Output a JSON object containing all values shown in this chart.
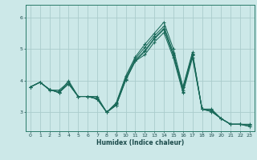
{
  "title": "",
  "xlabel": "Humidex (Indice chaleur)",
  "ylabel": "",
  "background_color": "#cce8e8",
  "grid_color": "#aacccc",
  "line_color": "#1a6a5a",
  "xlim": [
    -0.5,
    23.5
  ],
  "ylim": [
    2.4,
    6.4
  ],
  "yticks": [
    3,
    4,
    5,
    6
  ],
  "xticks": [
    0,
    1,
    2,
    3,
    4,
    5,
    6,
    7,
    8,
    9,
    10,
    11,
    12,
    13,
    14,
    15,
    16,
    17,
    18,
    19,
    20,
    21,
    22,
    23
  ],
  "series": [
    [
      3.8,
      3.95,
      3.7,
      3.7,
      3.95,
      3.5,
      3.5,
      3.5,
      3.0,
      3.3,
      4.15,
      4.75,
      5.15,
      5.5,
      5.85,
      5.0,
      3.8,
      4.9,
      3.1,
      3.1,
      2.8,
      2.62,
      2.62,
      2.62
    ],
    [
      3.8,
      3.95,
      3.72,
      3.65,
      3.9,
      3.5,
      3.5,
      3.45,
      3.0,
      3.25,
      4.05,
      4.65,
      4.95,
      5.35,
      5.65,
      4.82,
      3.7,
      4.82,
      3.1,
      3.05,
      2.8,
      2.62,
      2.62,
      2.55
    ],
    [
      3.8,
      3.95,
      3.72,
      3.62,
      4.0,
      3.5,
      3.5,
      3.42,
      3.0,
      3.28,
      4.1,
      4.7,
      5.05,
      5.42,
      5.72,
      4.88,
      3.78,
      4.85,
      3.1,
      3.08,
      2.8,
      2.62,
      2.62,
      2.55
    ],
    [
      3.8,
      3.95,
      3.72,
      3.62,
      3.9,
      3.5,
      3.5,
      3.42,
      3.0,
      3.22,
      4.02,
      4.62,
      4.92,
      5.32,
      5.62,
      4.8,
      3.65,
      4.8,
      3.1,
      3.02,
      2.8,
      2.62,
      2.62,
      2.6
    ],
    [
      3.8,
      3.95,
      3.72,
      3.62,
      3.9,
      3.5,
      3.5,
      3.42,
      3.0,
      3.22,
      4.02,
      4.62,
      4.82,
      5.22,
      5.52,
      4.72,
      3.62,
      4.72,
      3.1,
      3.02,
      2.8,
      2.62,
      2.62,
      2.6
    ]
  ]
}
